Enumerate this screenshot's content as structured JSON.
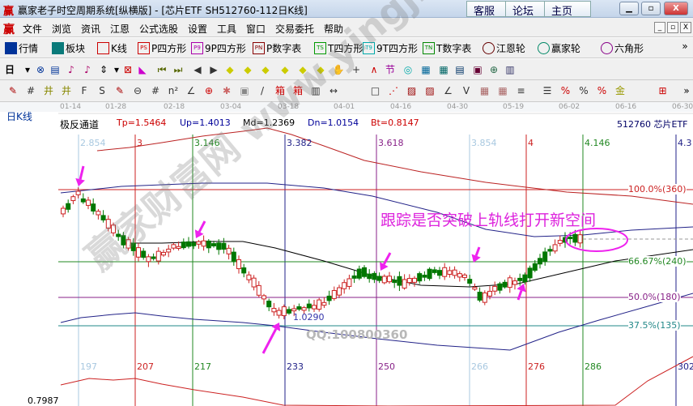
{
  "window": {
    "logo": "赢",
    "title": "赢家老子时空周期系统[纵横版] - [芯片ETF  SH512760-112日K线]",
    "links": [
      "客服",
      "论坛",
      "主页"
    ],
    "controls": [
      "minimize",
      "maximize",
      "close"
    ]
  },
  "menu": {
    "logo": "赢",
    "items": [
      "文件",
      "浏览",
      "资讯",
      "江恩",
      "公式选股",
      "设置",
      "工具",
      "窗口",
      "交易委托",
      "帮助"
    ],
    "mdi": [
      "_",
      "▫",
      "X"
    ]
  },
  "toolbar1": [
    {
      "icon": "table-icon",
      "label": "行情",
      "color": "#003399"
    },
    {
      "icon": "blocks-icon",
      "label": "板块",
      "color": "#0a7a7a"
    },
    {
      "icon": "kline-icon",
      "label": "K线",
      "color": "#cc0000"
    },
    {
      "icon": "PS",
      "label": "P四方形",
      "color": "#cc0000"
    },
    {
      "icon": "P9",
      "label": "9P四方形",
      "color": "#aa00aa"
    },
    {
      "icon": "PN",
      "label": "P数字表",
      "color": "#880000"
    },
    {
      "icon": "TS",
      "label": "T四方形",
      "color": "#009900"
    },
    {
      "icon": "T9",
      "label": "9T四方形",
      "color": "#00aaaa"
    },
    {
      "icon": "TN",
      "label": "T数字表",
      "color": "#008800"
    },
    {
      "icon": "gann-wheel-icon",
      "label": "江恩轮",
      "color": "#660000"
    },
    {
      "icon": "bg-wheel-icon",
      "label": "赢家轮",
      "color": "#008866"
    },
    {
      "icon": "hexagon-icon",
      "label": "六角形",
      "color": "#880088"
    }
  ],
  "toolbar1_more": "»",
  "toolbar2_period": "日",
  "toolbar3_more": "»",
  "chart": {
    "period_label": "日K线",
    "dates": [
      "01-14",
      "01-28",
      "02-18",
      "03-04",
      "03-18",
      "04-01",
      "04-16",
      "04-30",
      "05-19",
      "06-02",
      "06-16",
      "06-30"
    ],
    "indicator": {
      "name": "极反通道",
      "tp": "Tp=1.5464",
      "up": "Up=1.4013",
      "md": "Md=1.2369",
      "dn": "Dn=1.0154",
      "bt": "Bt=0.8147"
    },
    "symbol": "512760 芯片ETF",
    "top_cycle_labels": [
      "2.854",
      "3",
      "3.146",
      "3.382",
      "3.618",
      "3.854",
      "4",
      "4.146",
      "4.3"
    ],
    "bottom_cycle_labels": [
      "197",
      "207",
      "217",
      "233",
      "250",
      "266",
      "276",
      "286",
      "302"
    ],
    "cycle_colors": [
      "#a8c8e0",
      "#cc2222",
      "#228822",
      "#222288",
      "#882288",
      "#a8c8e0",
      "#cc2222",
      "#228822",
      "#222288"
    ],
    "levels": [
      {
        "label": "100.0%(360)",
        "color": "#cc2222"
      },
      {
        "label": "66.67%(240)",
        "color": "#228822"
      },
      {
        "label": "50.0%(180)",
        "color": "#882288"
      },
      {
        "label": "37.5%(135)",
        "color": "#228888"
      }
    ],
    "low_label": "1.0290",
    "annotation": "跟踪是否突破上轨线打开新空间",
    "qq": "QQ:100800360",
    "axis_min": "0.7987",
    "watermark": "赢家财富网 www.yingjia360.com",
    "up_color": "#cc2222",
    "down_color": "#007700",
    "arrow_color": "#ee22ee"
  }
}
